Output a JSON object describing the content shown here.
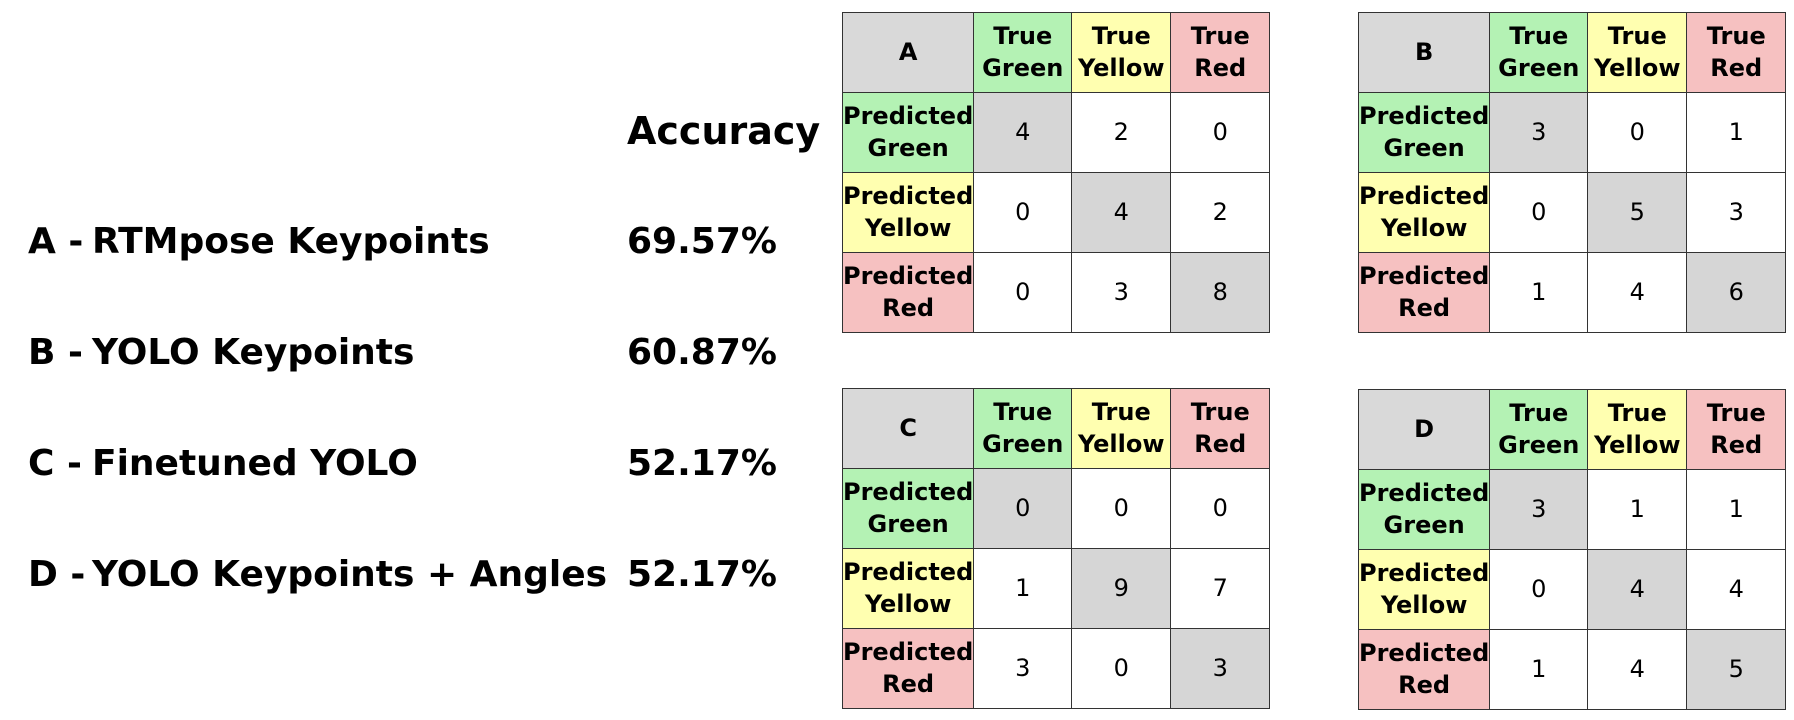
{
  "accuracy_header": "Accuracy",
  "models": [
    {
      "letter": "A -",
      "name": "RTMpose Keypoints",
      "accuracy": "69.57%"
    },
    {
      "letter": "B -",
      "name": "YOLO Keypoints",
      "accuracy": "60.87%"
    },
    {
      "letter": "C -",
      "name": "Finetuned YOLO",
      "accuracy": "52.17%"
    },
    {
      "letter": "D -",
      "name": "YOLO Keypoints + Angles",
      "accuracy": "52.17%"
    }
  ],
  "col_headers": {
    "green": [
      "True",
      "Green"
    ],
    "yellow": [
      "True",
      "Yellow"
    ],
    "red": [
      "True",
      "Red"
    ]
  },
  "row_headers": {
    "green": [
      "Predicted",
      "Green"
    ],
    "yellow": [
      "Predicted",
      "Yellow"
    ],
    "red": [
      "Predicted",
      "Red"
    ]
  },
  "matrices": {
    "A": {
      "label": "A",
      "rows": [
        [
          "4",
          "2",
          "0"
        ],
        [
          "0",
          "4",
          "2"
        ],
        [
          "0",
          "3",
          "8"
        ]
      ]
    },
    "B": {
      "label": "B",
      "rows": [
        [
          "3",
          "0",
          "1"
        ],
        [
          "0",
          "5",
          "3"
        ],
        [
          "1",
          "4",
          "6"
        ]
      ]
    },
    "C": {
      "label": "C",
      "rows": [
        [
          "0",
          "0",
          "0"
        ],
        [
          "1",
          "9",
          "7"
        ],
        [
          "3",
          "0",
          "3"
        ]
      ]
    },
    "D": {
      "label": "D",
      "rows": [
        [
          "3",
          "1",
          "1"
        ],
        [
          "0",
          "4",
          "4"
        ],
        [
          "1",
          "4",
          "5"
        ]
      ]
    }
  },
  "colors": {
    "green": "#b4f2b4",
    "yellow": "#ffffb0",
    "red": "#f6c1c1",
    "diagonal": "#d6d6d6",
    "corner": "#d9d9d9"
  }
}
